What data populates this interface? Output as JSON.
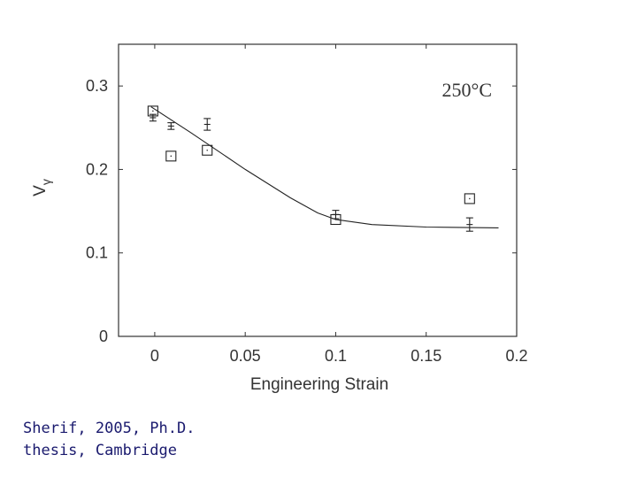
{
  "chart_data": {
    "type": "scatter",
    "title": "",
    "annotation": "250°C",
    "xlabel": "Engineering Strain",
    "ylabel_main": "V",
    "ylabel_sub": "γ",
    "xlim": [
      -0.02,
      0.2
    ],
    "ylim": [
      0,
      0.35
    ],
    "xticks": [
      0,
      0.05,
      0.1,
      0.15,
      0.2
    ],
    "xtick_labels": [
      "0",
      "0.05",
      "0.1",
      "0.15",
      "0.2"
    ],
    "yticks": [
      0,
      0.1,
      0.2,
      0.3
    ],
    "ytick_labels": [
      "0",
      "0.1",
      "0.2",
      "0.3"
    ],
    "series": [
      {
        "name": "squares",
        "marker": "square",
        "x": [
          -0.001,
          0.009,
          0.029,
          0.1,
          0.174
        ],
        "y": [
          0.27,
          0.216,
          0.223,
          0.14,
          0.165
        ]
      },
      {
        "name": "error-bar points",
        "marker": "errorbar",
        "x": [
          -0.001,
          0.009,
          0.029,
          0.1,
          0.174
        ],
        "y": [
          0.262,
          0.252,
          0.254,
          0.146,
          0.134
        ],
        "yerr": [
          0.004,
          0.004,
          0.007,
          0.005,
          0.008
        ]
      },
      {
        "name": "fit",
        "marker": "line",
        "x": [
          -0.002,
          0.02,
          0.05,
          0.075,
          0.09,
          0.1,
          0.12,
          0.15,
          0.19
        ],
        "y": [
          0.275,
          0.244,
          0.2,
          0.166,
          0.148,
          0.14,
          0.134,
          0.131,
          0.13
        ]
      }
    ]
  },
  "caption": {
    "line1": "Sherif, 2005, Ph.D.",
    "line2": "thesis, Cambridge"
  }
}
